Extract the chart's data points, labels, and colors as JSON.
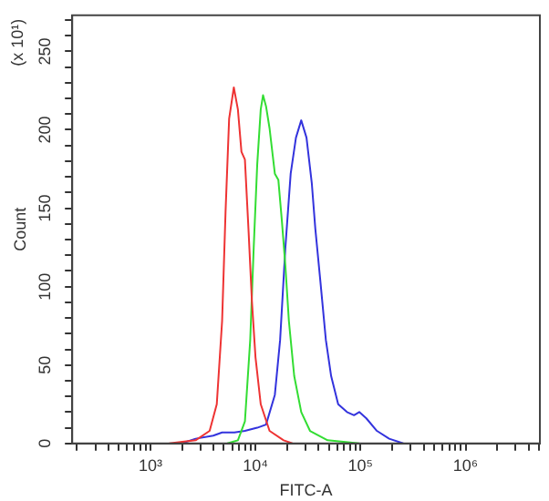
{
  "chart_data": {
    "type": "line",
    "xlabel": "FITC-A",
    "ylabel": "Count",
    "annotations": [
      "(x 10¹)"
    ],
    "log": "x",
    "grid": false,
    "legend": false,
    "marker": "none",
    "line_style": "solid",
    "xlim": [
      180,
      5100000
    ],
    "ylim": [
      0,
      273
    ],
    "xticks": [
      {
        "value": 200,
        "label": null
      },
      {
        "value": 300,
        "label": null
      },
      {
        "value": 400,
        "label": null
      },
      {
        "value": 500,
        "label": null
      },
      {
        "value": 600,
        "label": null
      },
      {
        "value": 700,
        "label": null
      },
      {
        "value": 800,
        "label": null
      },
      {
        "value": 900,
        "label": null
      },
      {
        "value": 1000,
        "label": "10³"
      },
      {
        "value": 2000,
        "label": null
      },
      {
        "value": 3000,
        "label": null
      },
      {
        "value": 4000,
        "label": null
      },
      {
        "value": 5000,
        "label": null
      },
      {
        "value": 6000,
        "label": null
      },
      {
        "value": 7000,
        "label": null
      },
      {
        "value": 8000,
        "label": null
      },
      {
        "value": 9000,
        "label": null
      },
      {
        "value": 10000,
        "label": "10⁴"
      },
      {
        "value": 20000,
        "label": null
      },
      {
        "value": 30000,
        "label": null
      },
      {
        "value": 40000,
        "label": null
      },
      {
        "value": 50000,
        "label": null
      },
      {
        "value": 60000,
        "label": null
      },
      {
        "value": 70000,
        "label": null
      },
      {
        "value": 80000,
        "label": null
      },
      {
        "value": 90000,
        "label": null
      },
      {
        "value": 100000,
        "label": "10⁵"
      },
      {
        "value": 200000,
        "label": null
      },
      {
        "value": 300000,
        "label": null
      },
      {
        "value": 400000,
        "label": null
      },
      {
        "value": 500000,
        "label": null
      },
      {
        "value": 600000,
        "label": null
      },
      {
        "value": 700000,
        "label": null
      },
      {
        "value": 800000,
        "label": null
      },
      {
        "value": 900000,
        "label": null
      },
      {
        "value": 1000000,
        "label": "10⁶"
      },
      {
        "value": 2000000,
        "label": null
      },
      {
        "value": 3000000,
        "label": null
      },
      {
        "value": 4000000,
        "label": null
      },
      {
        "value": 5000000,
        "label": null
      }
    ],
    "yticks": [
      0,
      {
        "value": 10,
        "label": null
      },
      {
        "value": 20,
        "label": null
      },
      {
        "value": 30,
        "label": null
      },
      {
        "value": 40,
        "label": null
      },
      50,
      {
        "value": 60,
        "label": null
      },
      {
        "value": 70,
        "label": null
      },
      {
        "value": 80,
        "label": null
      },
      {
        "value": 90,
        "label": null
      },
      100,
      {
        "value": 110,
        "label": null
      },
      {
        "value": 120,
        "label": null
      },
      {
        "value": 130,
        "label": null
      },
      {
        "value": 140,
        "label": null
      },
      150,
      {
        "value": 160,
        "label": null
      },
      {
        "value": 170,
        "label": null
      },
      {
        "value": 180,
        "label": null
      },
      {
        "value": 190,
        "label": null
      },
      200,
      {
        "value": 210,
        "label": null
      },
      {
        "value": 220,
        "label": null
      },
      {
        "value": 230,
        "label": null
      },
      {
        "value": 240,
        "label": null
      },
      250,
      {
        "value": 260,
        "label": null
      },
      {
        "value": 270,
        "label": null
      }
    ],
    "series": [
      {
        "color": "#ee3333",
        "x": [
          1510,
          2690,
          3660,
          4280,
          4810,
          5190,
          5610,
          6220,
          6800,
          7350,
          7930,
          8570,
          9260,
          10000,
          11220,
          13610,
          18540,
          22480
        ],
        "values": [
          0,
          2,
          8,
          25,
          78,
          148,
          207,
          227,
          213,
          186,
          181,
          137,
          90,
          55,
          25,
          8,
          2,
          0
        ]
      },
      {
        "color": "#33dd33",
        "x": [
          5400,
          6800,
          7930,
          8910,
          9620,
          10390,
          11220,
          11800,
          12600,
          13610,
          15290,
          16510,
          17830,
          19260,
          20800,
          23370,
          27260,
          33050,
          48600,
          97000
        ],
        "values": [
          0,
          2,
          14,
          66,
          125,
          178,
          213,
          222,
          215,
          201,
          172,
          168,
          142,
          113,
          78,
          43,
          20,
          8,
          2,
          0
        ]
      },
      {
        "color": "#3333dd",
        "x": [
          1980,
          2690,
          3960,
          4810,
          6300,
          7930,
          10390,
          12600,
          15290,
          17160,
          19260,
          21630,
          24280,
          27260,
          30600,
          34360,
          37110,
          41660,
          46770,
          52500,
          61260,
          74300,
          86700,
          97300,
          113600,
          143200,
          187500,
          255300
        ],
        "values": [
          0,
          3,
          5,
          7,
          7,
          8,
          10,
          12,
          31,
          66,
          125,
          172,
          195,
          206,
          195,
          166,
          137,
          102,
          66,
          43,
          25,
          20,
          18,
          20,
          16,
          8,
          3,
          0
        ]
      }
    ]
  }
}
